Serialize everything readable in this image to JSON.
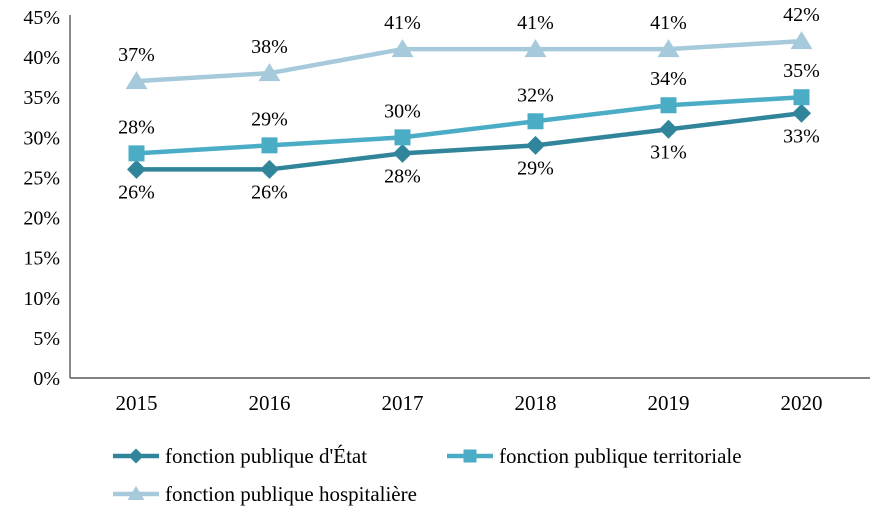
{
  "chart_data": {
    "type": "line",
    "title": "",
    "xlabel": "",
    "ylabel": "",
    "categories": [
      "2015",
      "2016",
      "2017",
      "2018",
      "2019",
      "2020"
    ],
    "series": [
      {
        "name": "fonction publique d'État",
        "values": [
          26,
          26,
          28,
          29,
          31,
          33
        ],
        "labels": [
          "26%",
          "26%",
          "28%",
          "29%",
          "31%",
          "33%"
        ],
        "color": "#31859b",
        "marker": "diamond",
        "data_label_position": "below"
      },
      {
        "name": "fonction publique territoriale",
        "values": [
          28,
          29,
          30,
          32,
          34,
          35
        ],
        "labels": [
          "28%",
          "29%",
          "30%",
          "32%",
          "34%",
          "35%"
        ],
        "color": "#4bacc6",
        "marker": "square",
        "data_label_position": "above"
      },
      {
        "name": "fonction publique hospitalière",
        "values": [
          37,
          38,
          41,
          41,
          41,
          42
        ],
        "labels": [
          "37%",
          "38%",
          "41%",
          "41%",
          "41%",
          "42%"
        ],
        "color": "#a6c9dc",
        "marker": "triangle",
        "data_label_position": "above"
      }
    ],
    "ylim": [
      0,
      45
    ],
    "ytick_step": 5,
    "ytick_labels": [
      "0%",
      "5%",
      "10%",
      "15%",
      "20%",
      "25%",
      "30%",
      "35%",
      "40%",
      "45%"
    ],
    "value_suffix": "%",
    "grid": false,
    "legend_position": "bottom",
    "axis_color": "#595959",
    "text_color": "#000000",
    "background_color": "#ffffff"
  }
}
